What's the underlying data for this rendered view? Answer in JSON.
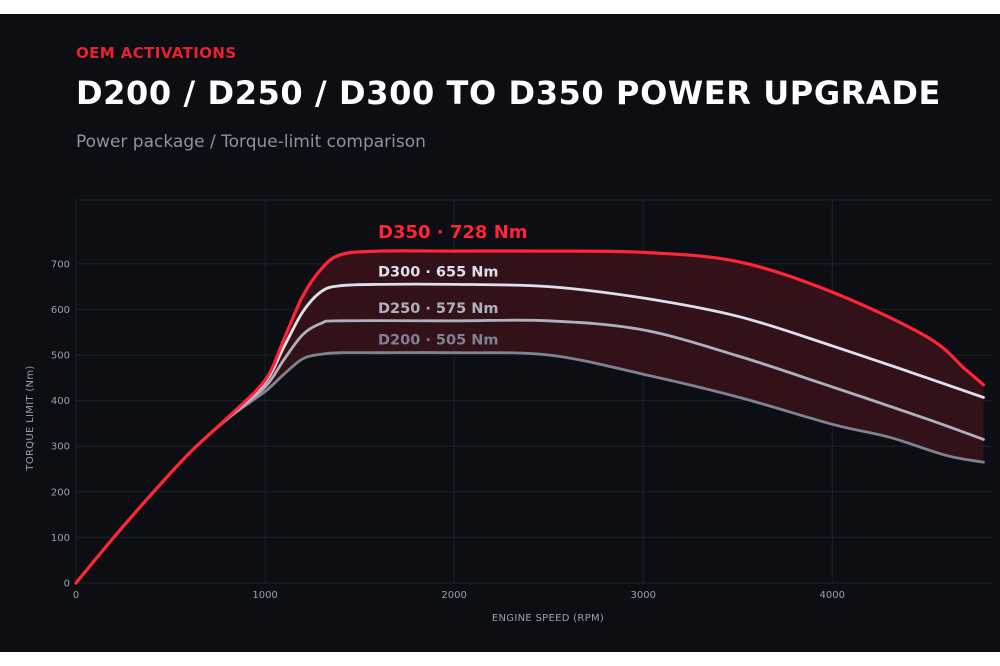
{
  "header": {
    "kicker": "OEM ACTIVATIONS",
    "title": "D200 / D250 / D300 TO D350 POWER UPGRADE",
    "subtitle": "Power package  /  Torque-limit comparison"
  },
  "chart_data": {
    "type": "line",
    "xlabel": "ENGINE SPEED (RPM)",
    "ylabel": "TORQUE LIMIT (Nm)",
    "xlim": [
      0,
      4850
    ],
    "ylim": [
      0,
      840
    ],
    "xticks": [
      0,
      1000,
      2000,
      3000,
      4000
    ],
    "yticks": [
      0,
      100,
      200,
      300,
      400,
      500,
      600,
      700
    ],
    "grid": true,
    "band_between": [
      "D200",
      "D350"
    ],
    "series": [
      {
        "name": "D200",
        "label": "D200  ·  505 Nm",
        "color": "#7f8391",
        "points": [
          [
            0,
            0
          ],
          [
            200,
            100
          ],
          [
            400,
            195
          ],
          [
            600,
            285
          ],
          [
            800,
            360
          ],
          [
            1000,
            420
          ],
          [
            1100,
            458
          ],
          [
            1200,
            492
          ],
          [
            1300,
            502
          ],
          [
            1400,
            505
          ],
          [
            1600,
            505
          ],
          [
            2000,
            505
          ],
          [
            2500,
            500
          ],
          [
            3000,
            458
          ],
          [
            3500,
            408
          ],
          [
            4000,
            348
          ],
          [
            4300,
            320
          ],
          [
            4600,
            280
          ],
          [
            4800,
            265
          ]
        ]
      },
      {
        "name": "D250",
        "label": "D250  ·  575 Nm",
        "color": "#adb1bd",
        "points": [
          [
            0,
            0
          ],
          [
            200,
            100
          ],
          [
            400,
            195
          ],
          [
            600,
            285
          ],
          [
            800,
            360
          ],
          [
            1000,
            430
          ],
          [
            1100,
            490
          ],
          [
            1200,
            545
          ],
          [
            1300,
            570
          ],
          [
            1400,
            575
          ],
          [
            2000,
            575
          ],
          [
            2500,
            575
          ],
          [
            3000,
            555
          ],
          [
            3500,
            498
          ],
          [
            4000,
            430
          ],
          [
            4500,
            360
          ],
          [
            4800,
            315
          ]
        ]
      },
      {
        "name": "D300",
        "label": "D300  ·  655 Nm",
        "color": "#dde0ea",
        "points": [
          [
            0,
            0
          ],
          [
            200,
            100
          ],
          [
            400,
            195
          ],
          [
            600,
            285
          ],
          [
            800,
            362
          ],
          [
            1000,
            440
          ],
          [
            1100,
            518
          ],
          [
            1200,
            595
          ],
          [
            1300,
            640
          ],
          [
            1400,
            652
          ],
          [
            1600,
            655
          ],
          [
            2000,
            655
          ],
          [
            2500,
            650
          ],
          [
            3000,
            625
          ],
          [
            3500,
            585
          ],
          [
            4000,
            520
          ],
          [
            4500,
            450
          ],
          [
            4800,
            407
          ]
        ]
      },
      {
        "name": "D350",
        "label": "D350  ·  728 Nm",
        "color": "#ff2436",
        "points": [
          [
            0,
            0
          ],
          [
            200,
            100
          ],
          [
            400,
            195
          ],
          [
            600,
            285
          ],
          [
            800,
            362
          ],
          [
            1000,
            445
          ],
          [
            1100,
            535
          ],
          [
            1200,
            630
          ],
          [
            1300,
            690
          ],
          [
            1400,
            720
          ],
          [
            1600,
            728
          ],
          [
            2000,
            728
          ],
          [
            2500,
            728
          ],
          [
            3000,
            725
          ],
          [
            3500,
            705
          ],
          [
            4000,
            638
          ],
          [
            4500,
            540
          ],
          [
            4700,
            470
          ],
          [
            4800,
            435
          ]
        ]
      }
    ]
  }
}
